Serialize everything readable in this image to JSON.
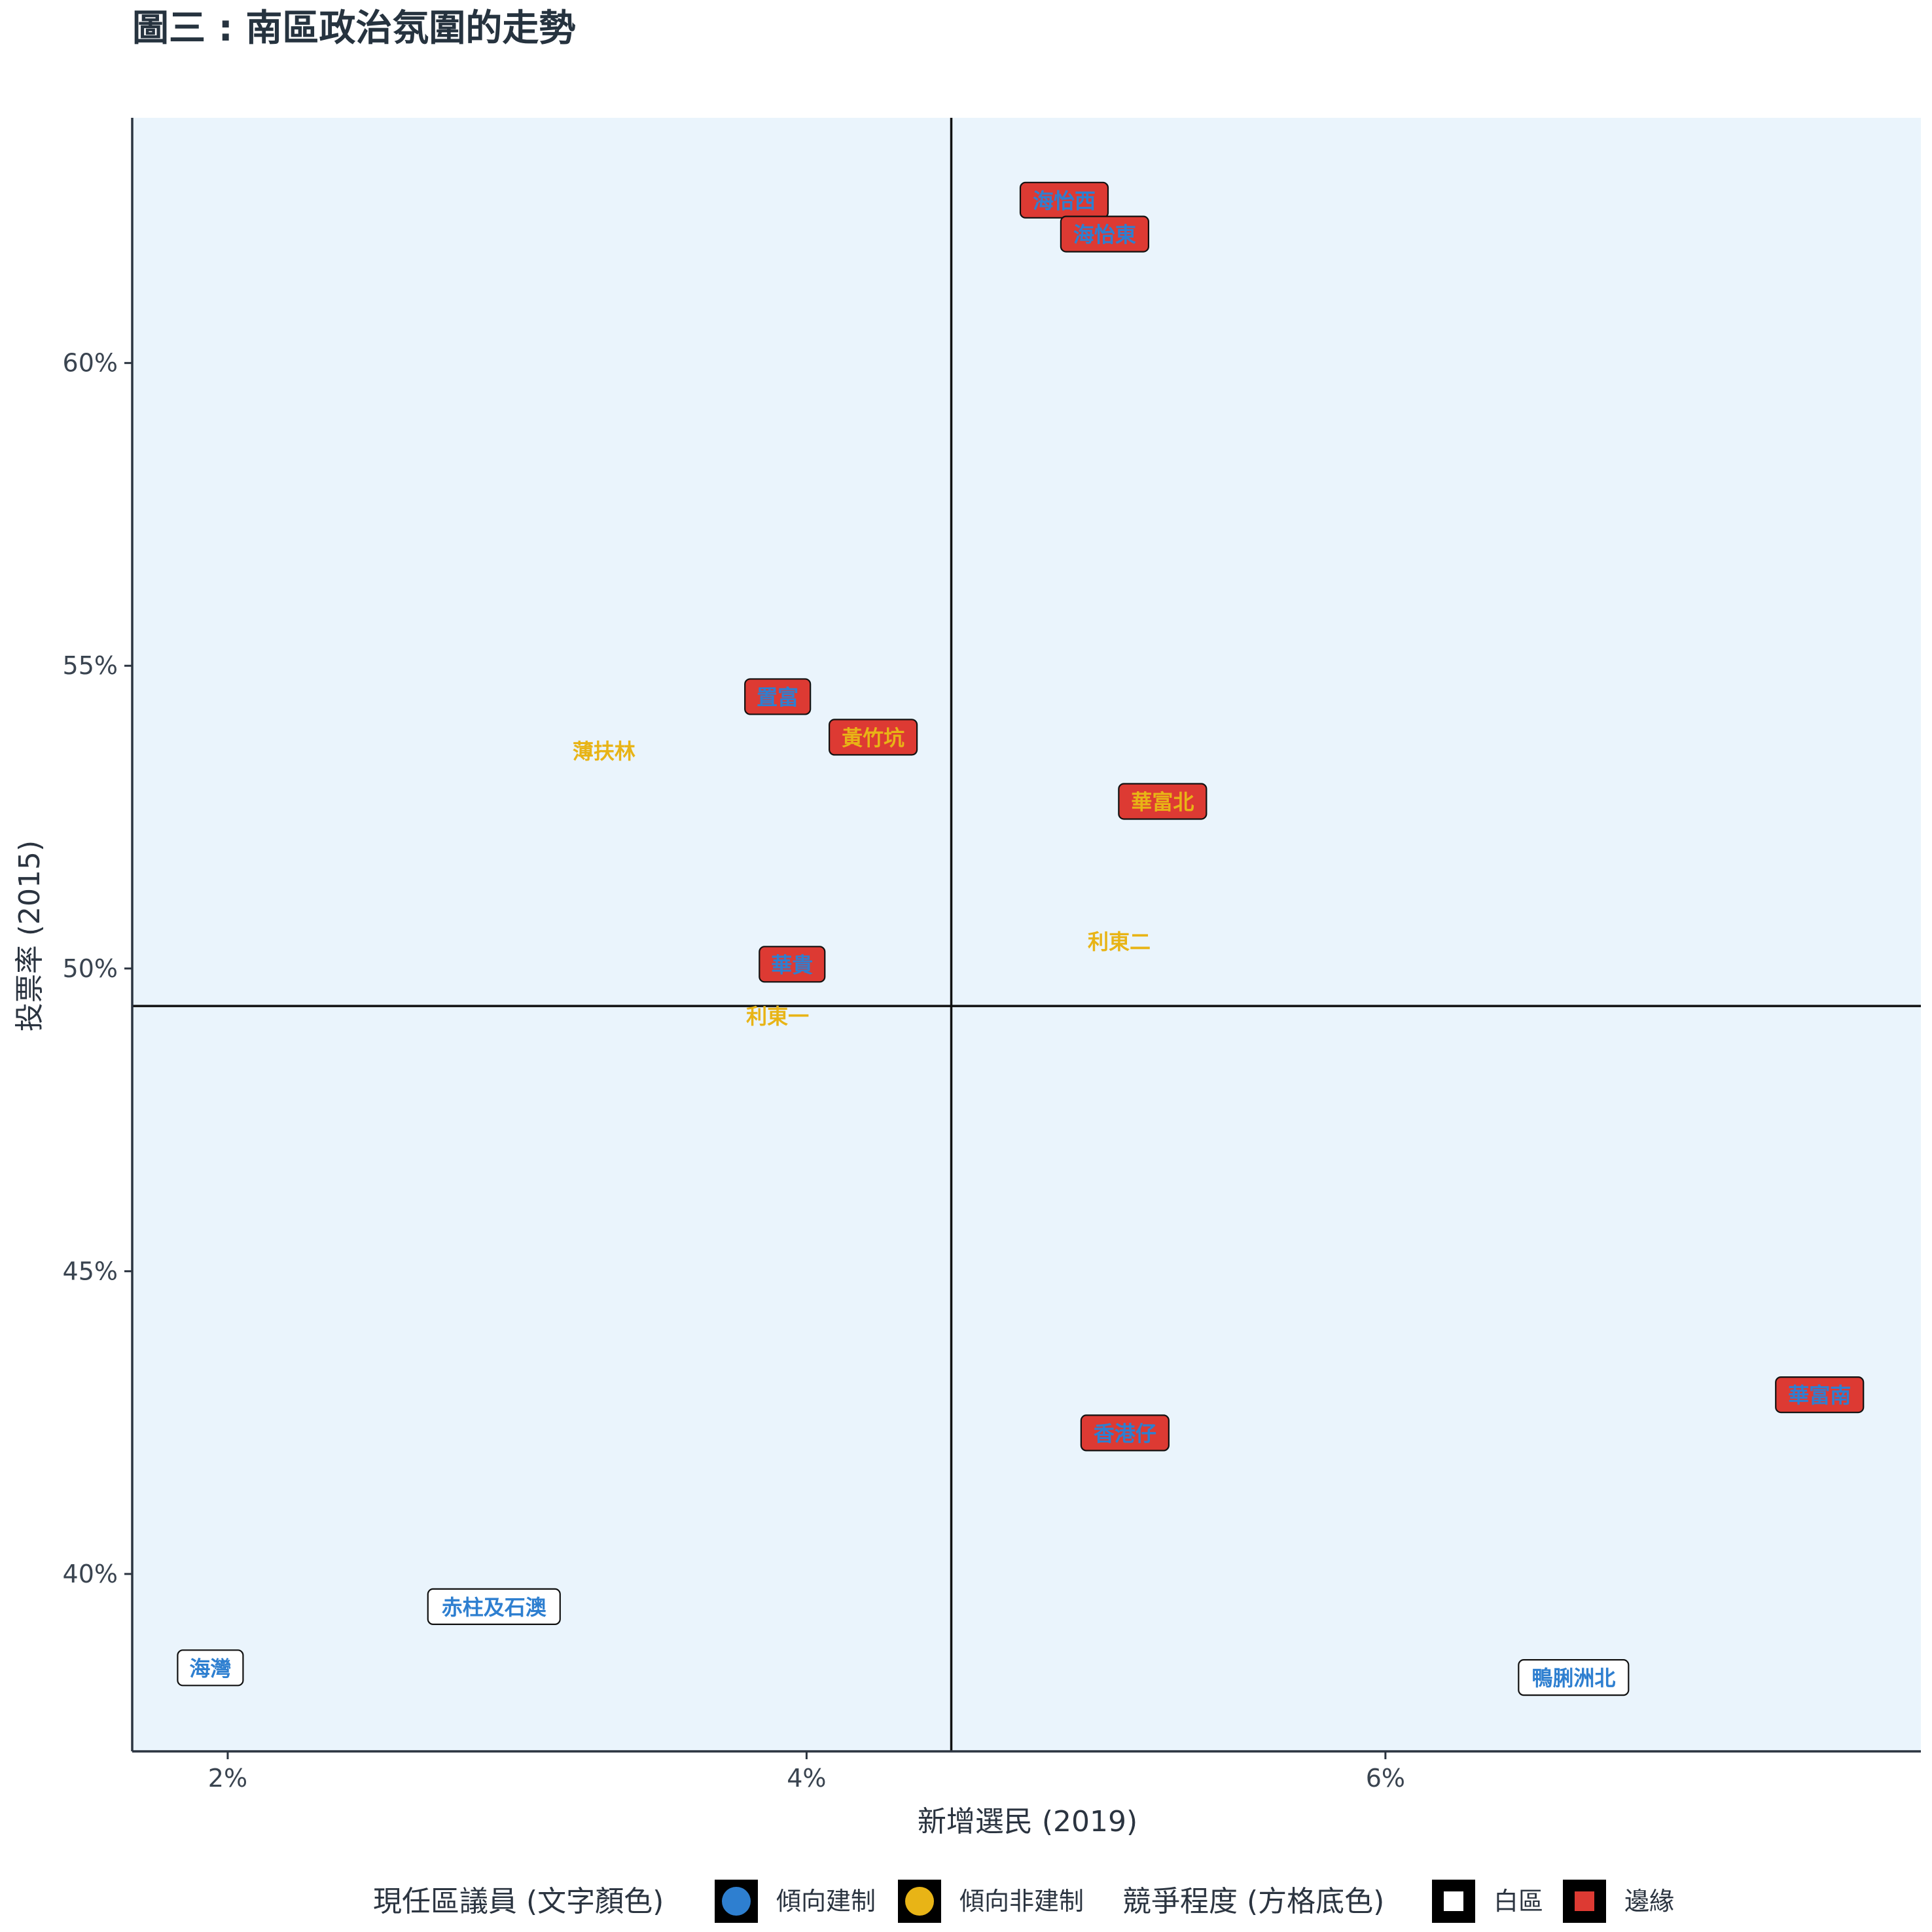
{
  "chart_data": {
    "type": "scatter",
    "title": "圖三 : 南區政治氛圍的走勢",
    "xlabel": "新增選民 (2019)",
    "ylabel": "投票率 (2015)",
    "xlim": [
      1.67,
      7.85
    ],
    "ylim": [
      37.07,
      64.05
    ],
    "x_ticks": [
      2,
      4,
      6
    ],
    "x_tick_labels": [
      "2%",
      "4%",
      "6%"
    ],
    "y_ticks": [
      40,
      45,
      50,
      55,
      60
    ],
    "y_tick_labels": [
      "40%",
      "45%",
      "50%",
      "55%",
      "60%"
    ],
    "reference_lines": {
      "x": 4.5,
      "y": 49.38
    },
    "panel_color": "#eaf4fc",
    "grid": false,
    "legend_position": "bottom",
    "points": [
      {
        "label": "海怡西",
        "x": 4.89,
        "y": 62.69,
        "text_group": "傾向建制",
        "box_group": "邊緣"
      },
      {
        "label": "海怡東",
        "x": 5.03,
        "y": 62.13,
        "text_group": "傾向建制",
        "box_group": "邊緣"
      },
      {
        "label": "置富",
        "x": 3.9,
        "y": 54.49,
        "text_group": "傾向建制",
        "box_group": "邊緣"
      },
      {
        "label": "黃竹坑",
        "x": 4.23,
        "y": 53.82,
        "text_group": "傾向非建制",
        "box_group": "邊緣"
      },
      {
        "label": "薄扶林",
        "x": 3.3,
        "y": 53.6,
        "text_group": "傾向非建制",
        "box_group": null
      },
      {
        "label": "華富北",
        "x": 5.23,
        "y": 52.76,
        "text_group": "傾向非建制",
        "box_group": "邊緣"
      },
      {
        "label": "利東二",
        "x": 5.08,
        "y": 50.45,
        "text_group": "傾向非建制",
        "box_group": null
      },
      {
        "label": "華貴",
        "x": 3.95,
        "y": 50.07,
        "text_group": "傾向建制",
        "box_group": "邊緣"
      },
      {
        "label": "利東一",
        "x": 3.9,
        "y": 49.22,
        "text_group": "傾向非建制",
        "box_group": null
      },
      {
        "label": "華富南",
        "x": 7.5,
        "y": 42.96,
        "text_group": "傾向建制",
        "box_group": "邊緣"
      },
      {
        "label": "香港仔",
        "x": 5.1,
        "y": 42.33,
        "text_group": "傾向建制",
        "box_group": "邊緣"
      },
      {
        "label": "赤柱及石澳",
        "x": 2.92,
        "y": 39.46,
        "text_group": "傾向建制",
        "box_group": "白區"
      },
      {
        "label": "海灣",
        "x": 1.94,
        "y": 38.45,
        "text_group": "傾向建制",
        "box_group": "白區"
      },
      {
        "label": "鴨脷洲北",
        "x": 6.65,
        "y": 38.29,
        "text_group": "傾向建制",
        "box_group": "白區"
      }
    ],
    "legend": {
      "text_color_title": "現任區議員 (文字顏色)",
      "text_color_items": [
        {
          "name": "傾向建制",
          "color": "#2e7fd0"
        },
        {
          "name": "傾向非建制",
          "color": "#e8b416"
        }
      ],
      "box_fill_title": "競爭程度 (方格底色)",
      "box_fill_items": [
        {
          "name": "白區",
          "color": "#ffffff"
        },
        {
          "name": "邊緣",
          "color": "#dd3a33"
        }
      ]
    }
  }
}
